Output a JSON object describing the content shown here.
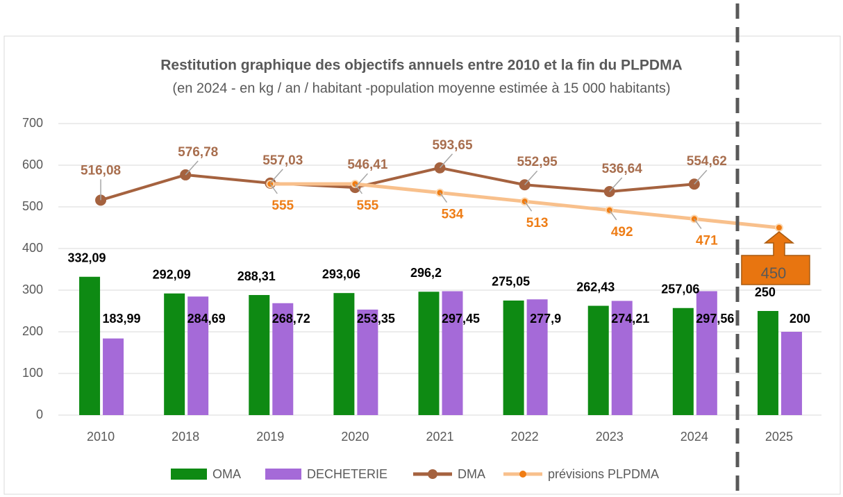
{
  "chart_data": {
    "type": "bar",
    "title": "Restitution graphique des objectifs annuels entre 2010 et la fin du PLPDMA",
    "subtitle": "(en 2024 - en kg / an / habitant -population moyenne estimée à 15 000 habitants)",
    "categories": [
      "2010",
      "2018",
      "2019",
      "2020",
      "2021",
      "2022",
      "2023",
      "2024",
      "2025"
    ],
    "ylim": [
      0,
      700
    ],
    "yticks": [
      0,
      100,
      200,
      300,
      400,
      500,
      600,
      700
    ],
    "grid": true,
    "series": [
      {
        "name": "OMA",
        "type": "bar",
        "color": "#0e8a13",
        "values": [
          332.09,
          292.09,
          288.31,
          293.06,
          296.2,
          275.05,
          262.43,
          257.06,
          250
        ],
        "value_labels": [
          "332,09",
          "292,09",
          "288,31",
          "293,06",
          "296,2",
          "275,05",
          "262,43",
          "257,06",
          "250"
        ]
      },
      {
        "name": "DECHETERIE",
        "type": "bar",
        "color": "#a56ad8",
        "values": [
          183.99,
          284.69,
          268.72,
          253.35,
          297.45,
          277.9,
          274.21,
          297.56,
          200
        ],
        "value_labels": [
          "183,99",
          "284,69",
          "268,72",
          "253,35",
          "297,45",
          "277,9",
          "274,21",
          "297,56",
          "200"
        ]
      },
      {
        "name": "DMA",
        "type": "line",
        "color": "#a5623f",
        "values": [
          516.08,
          576.78,
          557.03,
          546.41,
          593.65,
          552.95,
          536.64,
          554.62,
          null
        ],
        "value_labels": [
          "516,08",
          "576,78",
          "557,03",
          "546,41",
          "593,65",
          "552,95",
          "536,64",
          "554,62",
          null
        ]
      },
      {
        "name": "prévisions PLPDMA",
        "type": "line",
        "color": "#f8c08c",
        "marker_color": "#f07c12",
        "values": [
          null,
          null,
          555,
          555,
          534,
          513,
          492,
          471,
          450
        ]
      }
    ]
  }
}
